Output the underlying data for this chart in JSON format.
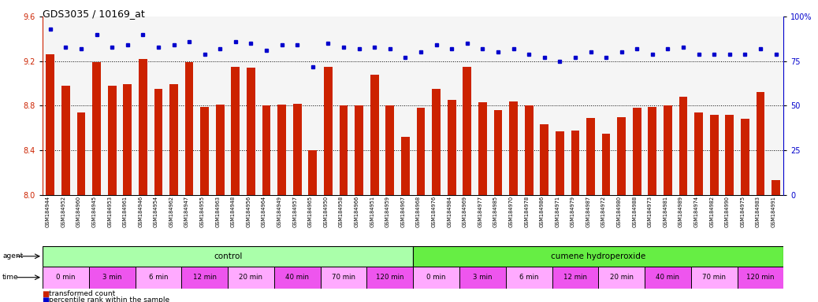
{
  "title": "GDS3035 / 10169_at",
  "samples": [
    "GSM184944",
    "GSM184952",
    "GSM184960",
    "GSM184945",
    "GSM184953",
    "GSM184961",
    "GSM184946",
    "GSM184954",
    "GSM184962",
    "GSM184947",
    "GSM184955",
    "GSM184963",
    "GSM184948",
    "GSM184956",
    "GSM184964",
    "GSM184949",
    "GSM184957",
    "GSM184965",
    "GSM184950",
    "GSM184958",
    "GSM184966",
    "GSM184951",
    "GSM184959",
    "GSM184967",
    "GSM184968",
    "GSM184976",
    "GSM184984",
    "GSM184969",
    "GSM184977",
    "GSM184985",
    "GSM184970",
    "GSM184978",
    "GSM184986",
    "GSM184971",
    "GSM184979",
    "GSM184987",
    "GSM184972",
    "GSM184980",
    "GSM184988",
    "GSM184973",
    "GSM184981",
    "GSM184989",
    "GSM184974",
    "GSM184982",
    "GSM184990",
    "GSM184975",
    "GSM184983",
    "GSM184991"
  ],
  "bar_values": [
    9.26,
    8.98,
    8.74,
    9.19,
    8.98,
    8.99,
    9.22,
    8.95,
    8.99,
    9.19,
    8.79,
    8.81,
    9.15,
    9.14,
    8.8,
    8.81,
    8.82,
    8.4,
    9.15,
    8.8,
    8.8,
    9.08,
    8.8,
    8.52,
    8.78,
    8.95,
    8.85,
    9.15,
    8.83,
    8.76,
    8.84,
    8.8,
    8.63,
    8.57,
    8.58,
    8.69,
    8.55,
    8.7,
    8.78,
    8.79,
    8.8,
    8.88,
    8.74,
    8.72,
    8.72,
    8.68,
    8.92,
    8.13
  ],
  "percentile_values": [
    93,
    83,
    82,
    90,
    83,
    84,
    90,
    83,
    84,
    86,
    79,
    82,
    86,
    85,
    81,
    84,
    84,
    72,
    85,
    83,
    82,
    83,
    82,
    77,
    80,
    84,
    82,
    85,
    82,
    80,
    82,
    79,
    77,
    75,
    77,
    80,
    77,
    80,
    82,
    79,
    82,
    83,
    79,
    79,
    79,
    79,
    82,
    79
  ],
  "ylim_left": [
    8.0,
    9.6
  ],
  "ylim_right": [
    0,
    100
  ],
  "yticks_left": [
    8.0,
    8.4,
    8.8,
    9.2,
    9.6
  ],
  "yticks_right": [
    0,
    25,
    50,
    75,
    100
  ],
  "bar_color": "#cc2200",
  "dot_color": "#0000cc",
  "chart_bg": "#f5f5f5",
  "agent_control_color": "#aaffaa",
  "agent_treatment_color": "#66ee44",
  "time_color_light": "#ffaaff",
  "time_color_dark": "#ee55ee",
  "time_labels": [
    "0 min",
    "3 min",
    "6 min",
    "12 min",
    "20 min",
    "40 min",
    "70 min",
    "120 min"
  ],
  "time_spans": [
    3,
    3,
    3,
    3,
    3,
    3,
    3,
    3
  ],
  "n_control": 24,
  "n_treatment": 24
}
